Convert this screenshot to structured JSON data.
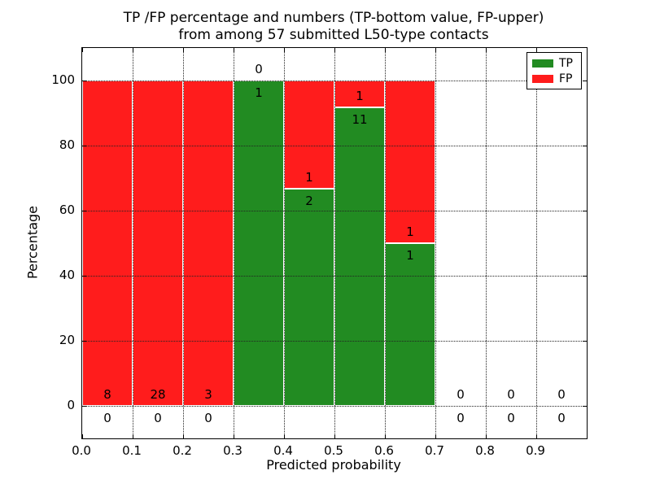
{
  "title": {
    "line1": "TP /FP percentage and numbers (TP-bottom value, FP-upper)",
    "line2": "from among 57 submitted L50-type contacts"
  },
  "axes": {
    "xlabel": "Predicted probability",
    "ylabel": "Percentage"
  },
  "legend": {
    "items": [
      {
        "name": "TP",
        "label": "TP",
        "color": "#228b22"
      },
      {
        "name": "FP",
        "label": "FP",
        "color": "#ff1c1c"
      }
    ]
  },
  "colors": {
    "tp_green": "#228b22",
    "fp_red": "#ff1c1c",
    "grid": "#222222",
    "spine": "#000000"
  },
  "chart_data": {
    "type": "bar",
    "stacked": true,
    "title": "TP /FP percentage and numbers (TP-bottom value, FP-upper) from among 57 submitted L50-type contacts",
    "xlabel": "Predicted probability",
    "ylabel": "Percentage",
    "xlim": [
      0.0,
      1.0
    ],
    "ylim": [
      -10,
      110
    ],
    "grid": true,
    "legend_position": "upper right",
    "total_submitted_contacts": 57,
    "series_names": [
      "TP",
      "FP"
    ],
    "x_tick_values": [
      0.0,
      0.1,
      0.2,
      0.3,
      0.4,
      0.5,
      0.6,
      0.7,
      0.8,
      0.9
    ],
    "x_tick_labels": [
      "0.0",
      "0.1",
      "0.2",
      "0.3",
      "0.4",
      "0.5",
      "0.6",
      "0.7",
      "0.8",
      "0.9"
    ],
    "y_tick_values": [
      0,
      20,
      40,
      60,
      80,
      100
    ],
    "y_tick_labels": [
      "0",
      "20",
      "40",
      "60",
      "80",
      "100"
    ],
    "bins": [
      {
        "x_range": [
          0.0,
          0.1
        ],
        "tp_count": 0,
        "fp_count": 8,
        "tp_pct": 0,
        "fp_pct": 100
      },
      {
        "x_range": [
          0.1,
          0.2
        ],
        "tp_count": 0,
        "fp_count": 28,
        "tp_pct": 0,
        "fp_pct": 100
      },
      {
        "x_range": [
          0.2,
          0.3
        ],
        "tp_count": 0,
        "fp_count": 3,
        "tp_pct": 0,
        "fp_pct": 100
      },
      {
        "x_range": [
          0.3,
          0.4
        ],
        "tp_count": 1,
        "fp_count": 0,
        "tp_pct": 100,
        "fp_pct": 0
      },
      {
        "x_range": [
          0.4,
          0.5
        ],
        "tp_count": 2,
        "fp_count": 1,
        "tp_pct": 66.67,
        "fp_pct": 33.33
      },
      {
        "x_range": [
          0.5,
          0.6
        ],
        "tp_count": 11,
        "fp_count": 1,
        "tp_pct": 91.67,
        "fp_pct": 8.33
      },
      {
        "x_range": [
          0.6,
          0.7
        ],
        "tp_count": 1,
        "fp_count": 1,
        "tp_pct": 50,
        "fp_pct": 50
      },
      {
        "x_range": [
          0.7,
          0.8
        ],
        "tp_count": 0,
        "fp_count": 0,
        "tp_pct": 0,
        "fp_pct": 0
      },
      {
        "x_range": [
          0.8,
          0.9
        ],
        "tp_count": 0,
        "fp_count": 0,
        "tp_pct": 0,
        "fp_pct": 0
      },
      {
        "x_range": [
          0.9,
          1.0
        ],
        "tp_count": 0,
        "fp_count": 0,
        "tp_pct": 0,
        "fp_pct": 0
      }
    ]
  }
}
